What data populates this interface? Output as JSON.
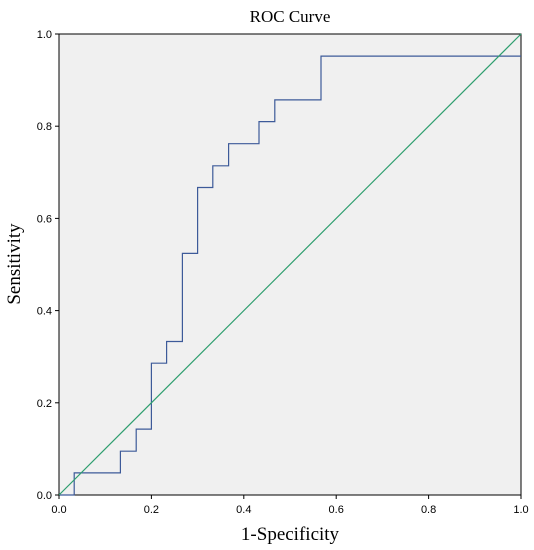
{
  "chart_data": {
    "type": "line",
    "title": "ROC Curve",
    "xlabel": "1-Specificity",
    "ylabel": "Sensitivity",
    "xlim": [
      0,
      1
    ],
    "ylim": [
      0,
      1
    ],
    "grid": false,
    "legend": "none",
    "x_ticks": [
      0.0,
      0.2,
      0.4,
      0.6,
      0.8,
      1.0
    ],
    "y_ticks": [
      0.0,
      0.2,
      0.4,
      0.6,
      0.8,
      1.0
    ],
    "x_tick_labels": [
      "0.0",
      "0.2",
      "0.4",
      "0.6",
      "0.8",
      "1.0"
    ],
    "y_tick_labels": [
      "0.0",
      "0.2",
      "0.4",
      "0.6",
      "0.8",
      "1.0"
    ],
    "plot_background": "#f0f0f0",
    "series": [
      {
        "color": "#3d5a99",
        "step": true,
        "x": [
          0.0,
          0.033,
          0.033,
          0.133,
          0.133,
          0.167,
          0.167,
          0.2,
          0.2,
          0.233,
          0.233,
          0.267,
          0.267,
          0.3,
          0.3,
          0.333,
          0.333,
          0.367,
          0.367,
          0.433,
          0.433,
          0.467,
          0.467,
          0.567,
          0.567,
          1.0
        ],
        "y": [
          0.0,
          0.0,
          0.048,
          0.048,
          0.095,
          0.095,
          0.143,
          0.143,
          0.286,
          0.286,
          0.333,
          0.333,
          0.524,
          0.524,
          0.667,
          0.667,
          0.714,
          0.714,
          0.762,
          0.762,
          0.81,
          0.81,
          0.857,
          0.857,
          0.952,
          0.952
        ]
      },
      {
        "color": "#2e9e6e",
        "step": false,
        "x": [
          0.0,
          1.0
        ],
        "y": [
          0.0,
          1.0
        ]
      }
    ]
  }
}
